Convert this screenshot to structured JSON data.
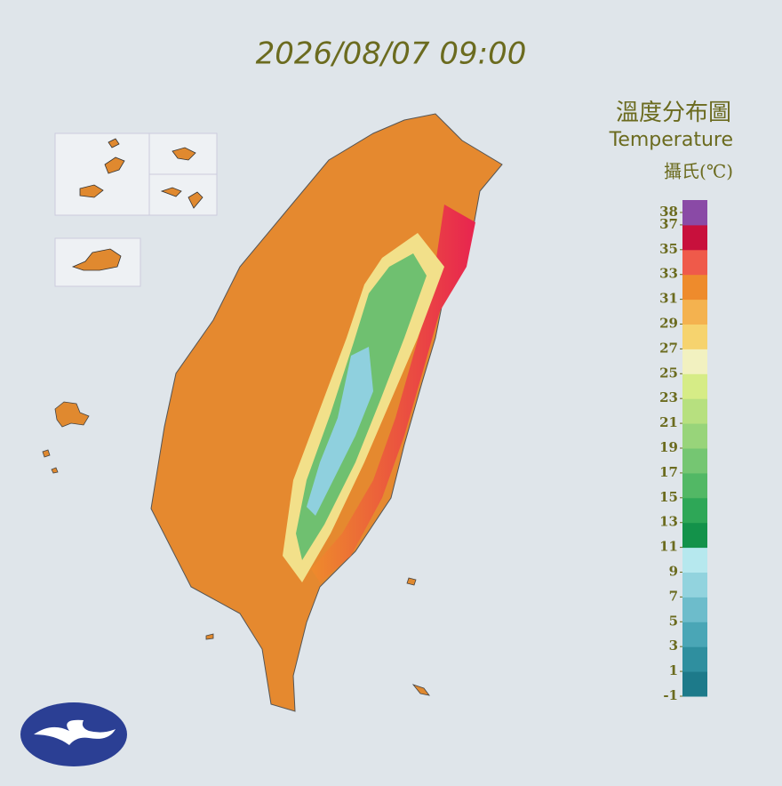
{
  "header": {
    "title": "2026/08/07 09:00"
  },
  "legend": {
    "title_zh": "溫度分布圖",
    "title_en": "Temperature",
    "unit": "攝氏(℃)",
    "min": -1,
    "max": 39,
    "colors": [
      "#1d7a8a",
      "#2f8f9f",
      "#4aa6b6",
      "#6dbccb",
      "#92d3de",
      "#b6e8ee",
      "#13924a",
      "#2ea757",
      "#52b865",
      "#75c672",
      "#98d47a",
      "#b7e07f",
      "#d6ec86",
      "#f2f1c0",
      "#f6d36e",
      "#f4b24f",
      "#ee8b2c",
      "#ef5a4a",
      "#c8103c",
      "#8a4aa6"
    ],
    "ticks": [
      38,
      37,
      35,
      33,
      31,
      29,
      27,
      25,
      23,
      21,
      19,
      17,
      15,
      13,
      11,
      9,
      7,
      5,
      3,
      1,
      -1
    ]
  }
}
